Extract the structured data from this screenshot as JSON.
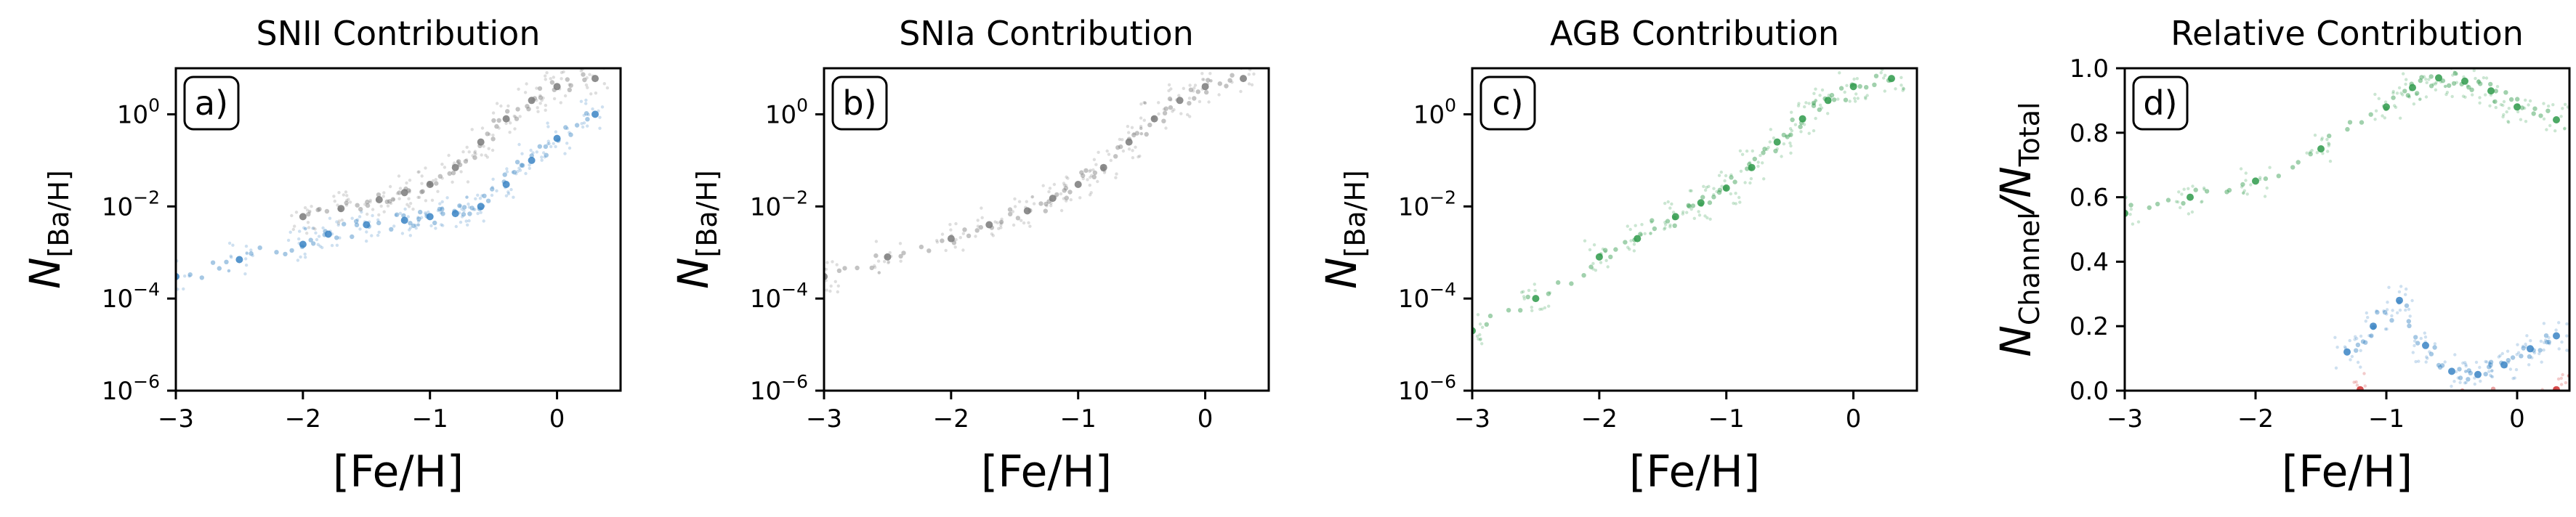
{
  "chart_data": [
    {
      "type": "scatter",
      "title": "SNII Contribution",
      "panel_label": "a)",
      "xlabel": "[Fe/H]",
      "ylabel": "N[Ba/H]",
      "xlim": [
        -3,
        0.5
      ],
      "ylim": [
        1e-06,
        10
      ],
      "yscale": "log",
      "x_ticks": [
        "−3",
        "−2",
        "−1",
        "0"
      ],
      "y_ticks": [
        "10−6",
        "10−4",
        "10−2",
        "100"
      ],
      "series": [
        {
          "color": "#7a7a7a",
          "x": [
            -2.0,
            -1.7,
            -1.4,
            -1.2,
            -1.0,
            -0.8,
            -0.6,
            -0.4,
            -0.2,
            0.0,
            0.3
          ],
          "y": [
            0.006,
            0.009,
            0.014,
            0.02,
            0.03,
            0.07,
            0.25,
            0.8,
            2.0,
            4.0,
            6.0
          ]
        },
        {
          "color": "#3a84c4",
          "x": [
            -3.0,
            -2.5,
            -2.0,
            -1.8,
            -1.5,
            -1.2,
            -1.0,
            -0.8,
            -0.6,
            -0.4,
            -0.2,
            0.0,
            0.3
          ],
          "y": [
            0.0003,
            0.0007,
            0.0015,
            0.0025,
            0.004,
            0.005,
            0.006,
            0.007,
            0.01,
            0.03,
            0.1,
            0.3,
            1.0
          ]
        }
      ]
    },
    {
      "type": "scatter",
      "title": "SNIa Contribution",
      "panel_label": "b)",
      "xlabel": "[Fe/H]",
      "ylabel": "N[Ba/H]",
      "xlim": [
        -3,
        0.5
      ],
      "ylim": [
        1e-06,
        10
      ],
      "yscale": "log",
      "x_ticks": [
        "−3",
        "−2",
        "−1",
        "0"
      ],
      "y_ticks": [
        "10−6",
        "10−4",
        "10−2",
        "100"
      ],
      "series": [
        {
          "color": "#7a7a7a",
          "x": [
            -3.0,
            -2.5,
            -2.0,
            -1.7,
            -1.4,
            -1.2,
            -1.0,
            -0.8,
            -0.6,
            -0.4,
            -0.2,
            0.0,
            0.3
          ],
          "y": [
            0.0003,
            0.0008,
            0.002,
            0.004,
            0.008,
            0.015,
            0.03,
            0.07,
            0.25,
            0.8,
            2.0,
            4.0,
            6.0
          ]
        }
      ]
    },
    {
      "type": "scatter",
      "title": "AGB Contribution",
      "panel_label": "c)",
      "xlabel": "[Fe/H]",
      "ylabel": "N[Ba/H]",
      "xlim": [
        -3,
        0.5
      ],
      "ylim": [
        1e-06,
        10
      ],
      "yscale": "log",
      "x_ticks": [
        "−3",
        "−2",
        "−1",
        "0"
      ],
      "y_ticks": [
        "10−6",
        "10−4",
        "10−2",
        "100"
      ],
      "series": [
        {
          "color": "#2e9a4a",
          "x": [
            -3.0,
            -2.5,
            -2.0,
            -1.7,
            -1.4,
            -1.2,
            -1.0,
            -0.8,
            -0.6,
            -0.4,
            -0.2,
            0.0,
            0.3
          ],
          "y": [
            2e-05,
            0.0001,
            0.0008,
            0.002,
            0.006,
            0.012,
            0.025,
            0.07,
            0.25,
            0.8,
            2.0,
            4.0,
            6.0
          ]
        }
      ]
    },
    {
      "type": "scatter",
      "title": "Relative Contribution",
      "panel_label": "d)",
      "xlabel": "[Fe/H]",
      "ylabel": "NChannel/NTotal",
      "xlim": [
        -3,
        0.4
      ],
      "ylim": [
        0,
        1
      ],
      "yscale": "linear",
      "x_ticks": [
        "−3",
        "−2",
        "−1",
        "0"
      ],
      "y_ticks": [
        "0.0",
        "0.2",
        "0.4",
        "0.6",
        "0.8",
        "1.0"
      ],
      "series": [
        {
          "color": "#2e9a4a",
          "x": [
            -3.0,
            -2.5,
            -2.0,
            -1.5,
            -1.0,
            -0.8,
            -0.6,
            -0.4,
            -0.2,
            0.0,
            0.3
          ],
          "y": [
            0.55,
            0.6,
            0.65,
            0.75,
            0.88,
            0.94,
            0.97,
            0.96,
            0.93,
            0.88,
            0.84
          ]
        },
        {
          "color": "#3a84c4",
          "x": [
            -1.3,
            -1.1,
            -0.9,
            -0.7,
            -0.5,
            -0.3,
            -0.1,
            0.1,
            0.3
          ],
          "y": [
            0.12,
            0.2,
            0.28,
            0.14,
            0.06,
            0.05,
            0.08,
            0.13,
            0.17
          ]
        },
        {
          "color": "#d03030",
          "x": [
            -1.2,
            0.3
          ],
          "y": [
            0.003,
            0.003
          ]
        }
      ]
    }
  ]
}
